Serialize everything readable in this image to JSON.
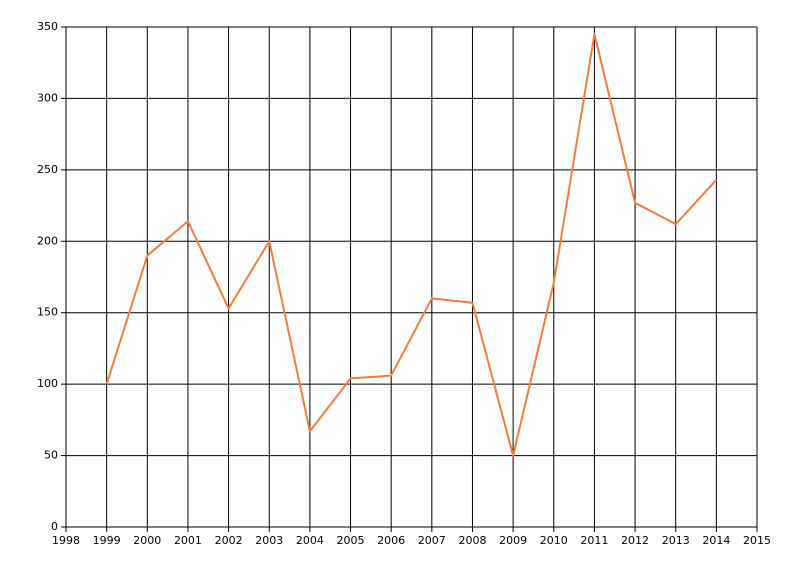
{
  "chart_data": {
    "type": "line",
    "x": [
      1999,
      2000,
      2001,
      2002,
      2003,
      2004,
      2005,
      2006,
      2007,
      2008,
      2009,
      2010,
      2011,
      2012,
      2013,
      2014
    ],
    "series": [
      {
        "color": "#f47c3c",
        "values": [
          100,
          190,
          214,
          153,
          200,
          67,
          104,
          106,
          160,
          157,
          50,
          171,
          345,
          227,
          212,
          243
        ]
      }
    ],
    "xlim": [
      1998,
      2015
    ],
    "xticks": [
      1998,
      1999,
      2000,
      2001,
      2002,
      2003,
      2004,
      2005,
      2006,
      2007,
      2008,
      2009,
      2010,
      2011,
      2012,
      2013,
      2014,
      2015
    ],
    "ylim": [
      0,
      350
    ],
    "yticks": [
      0,
      50,
      100,
      150,
      200,
      250,
      300,
      350
    ],
    "grid": true
  }
}
